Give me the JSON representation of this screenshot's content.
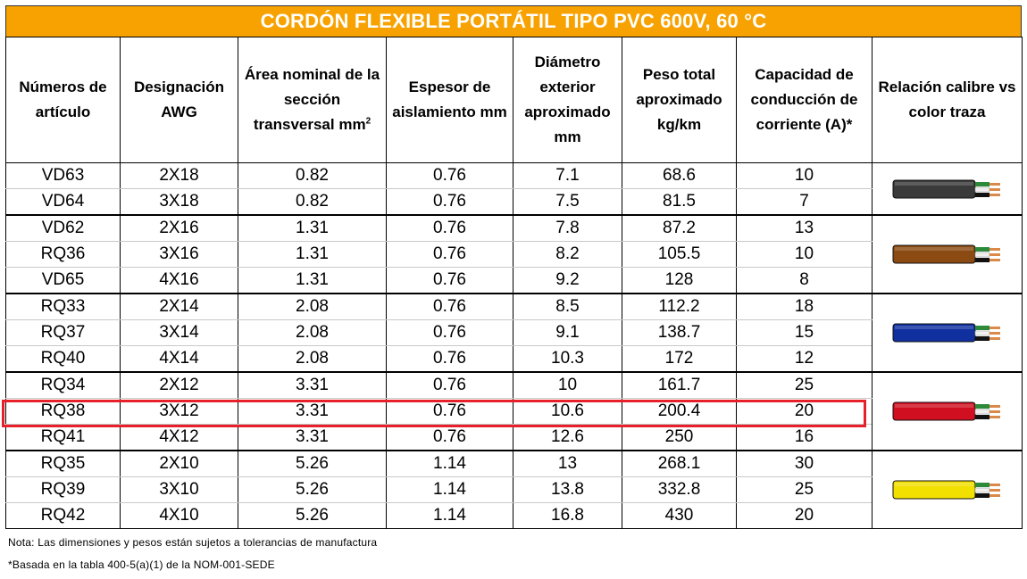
{
  "title": "CORDÓN FLEXIBLE PORTÁTIL TIPO PVC 600V, 60 °C",
  "headers": {
    "articulo": "Números de artículo",
    "awg": "Designación AWG",
    "area": "Área nominal de la sección transversal mm",
    "area_sup": "2",
    "espesor": "Espesor de aislamiento mm",
    "diametro": "Diámetro exterior aproximado mm",
    "peso": "Peso total aproximado kg/km",
    "capacidad": "Capacidad de conducción de corriente (A)*",
    "relacion": "Relación calibre vs color traza"
  },
  "rows": [
    {
      "art": "VD63",
      "awg": "2X18",
      "area": "0.82",
      "esp": "0.76",
      "dia": "7.1",
      "peso": "68.6",
      "cap": "10"
    },
    {
      "art": "VD64",
      "awg": "3X18",
      "area": "0.82",
      "esp": "0.76",
      "dia": "7.5",
      "peso": "81.5",
      "cap": "7"
    },
    {
      "art": "VD62",
      "awg": "2X16",
      "area": "1.31",
      "esp": "0.76",
      "dia": "7.8",
      "peso": "87.2",
      "cap": "13"
    },
    {
      "art": "RQ36",
      "awg": "3X16",
      "area": "1.31",
      "esp": "0.76",
      "dia": "8.2",
      "peso": "105.5",
      "cap": "10"
    },
    {
      "art": "VD65",
      "awg": "4X16",
      "area": "1.31",
      "esp": "0.76",
      "dia": "9.2",
      "peso": "128",
      "cap": "8"
    },
    {
      "art": "RQ33",
      "awg": "2X14",
      "area": "2.08",
      "esp": "0.76",
      "dia": "8.5",
      "peso": "112.2",
      "cap": "18"
    },
    {
      "art": "RQ37",
      "awg": "3X14",
      "area": "2.08",
      "esp": "0.76",
      "dia": "9.1",
      "peso": "138.7",
      "cap": "15"
    },
    {
      "art": "RQ40",
      "awg": "4X14",
      "area": "2.08",
      "esp": "0.76",
      "dia": "10.3",
      "peso": "172",
      "cap": "12"
    },
    {
      "art": "RQ34",
      "awg": "2X12",
      "area": "3.31",
      "esp": "0.76",
      "dia": "10",
      "peso": "161.7",
      "cap": "25"
    },
    {
      "art": "RQ38",
      "awg": "3X12",
      "area": "3.31",
      "esp": "0.76",
      "dia": "10.6",
      "peso": "200.4",
      "cap": "20"
    },
    {
      "art": "RQ41",
      "awg": "4X12",
      "area": "3.31",
      "esp": "0.76",
      "dia": "12.6",
      "peso": "250",
      "cap": "16"
    },
    {
      "art": "RQ35",
      "awg": "2X10",
      "area": "5.26",
      "esp": "1.14",
      "dia": "13",
      "peso": "268.1",
      "cap": "30"
    },
    {
      "art": "RQ39",
      "awg": "3X10",
      "area": "5.26",
      "esp": "1.14",
      "dia": "13.8",
      "peso": "332.8",
      "cap": "25"
    },
    {
      "art": "RQ42",
      "awg": "4X10",
      "area": "5.26",
      "esp": "1.14",
      "dia": "16.8",
      "peso": "430",
      "cap": "20"
    }
  ],
  "cable_colors": {
    "awg18": "#3a3a3a",
    "awg16": "#8a4a12",
    "awg14": "#1030a0",
    "awg12": "#d01020",
    "awg10": "#f2e000"
  },
  "highlighted_row": "RQ38",
  "colors": {
    "title_bg": "#f7a200",
    "highlight": "#e8202a"
  },
  "notes": {
    "nota": "Nota: Las dimensiones y pesos están sujetos a tolerancias de manufactura",
    "basada": "*Basada en la tabla 400-5(a)(1) de la NOM-001-SEDE"
  }
}
